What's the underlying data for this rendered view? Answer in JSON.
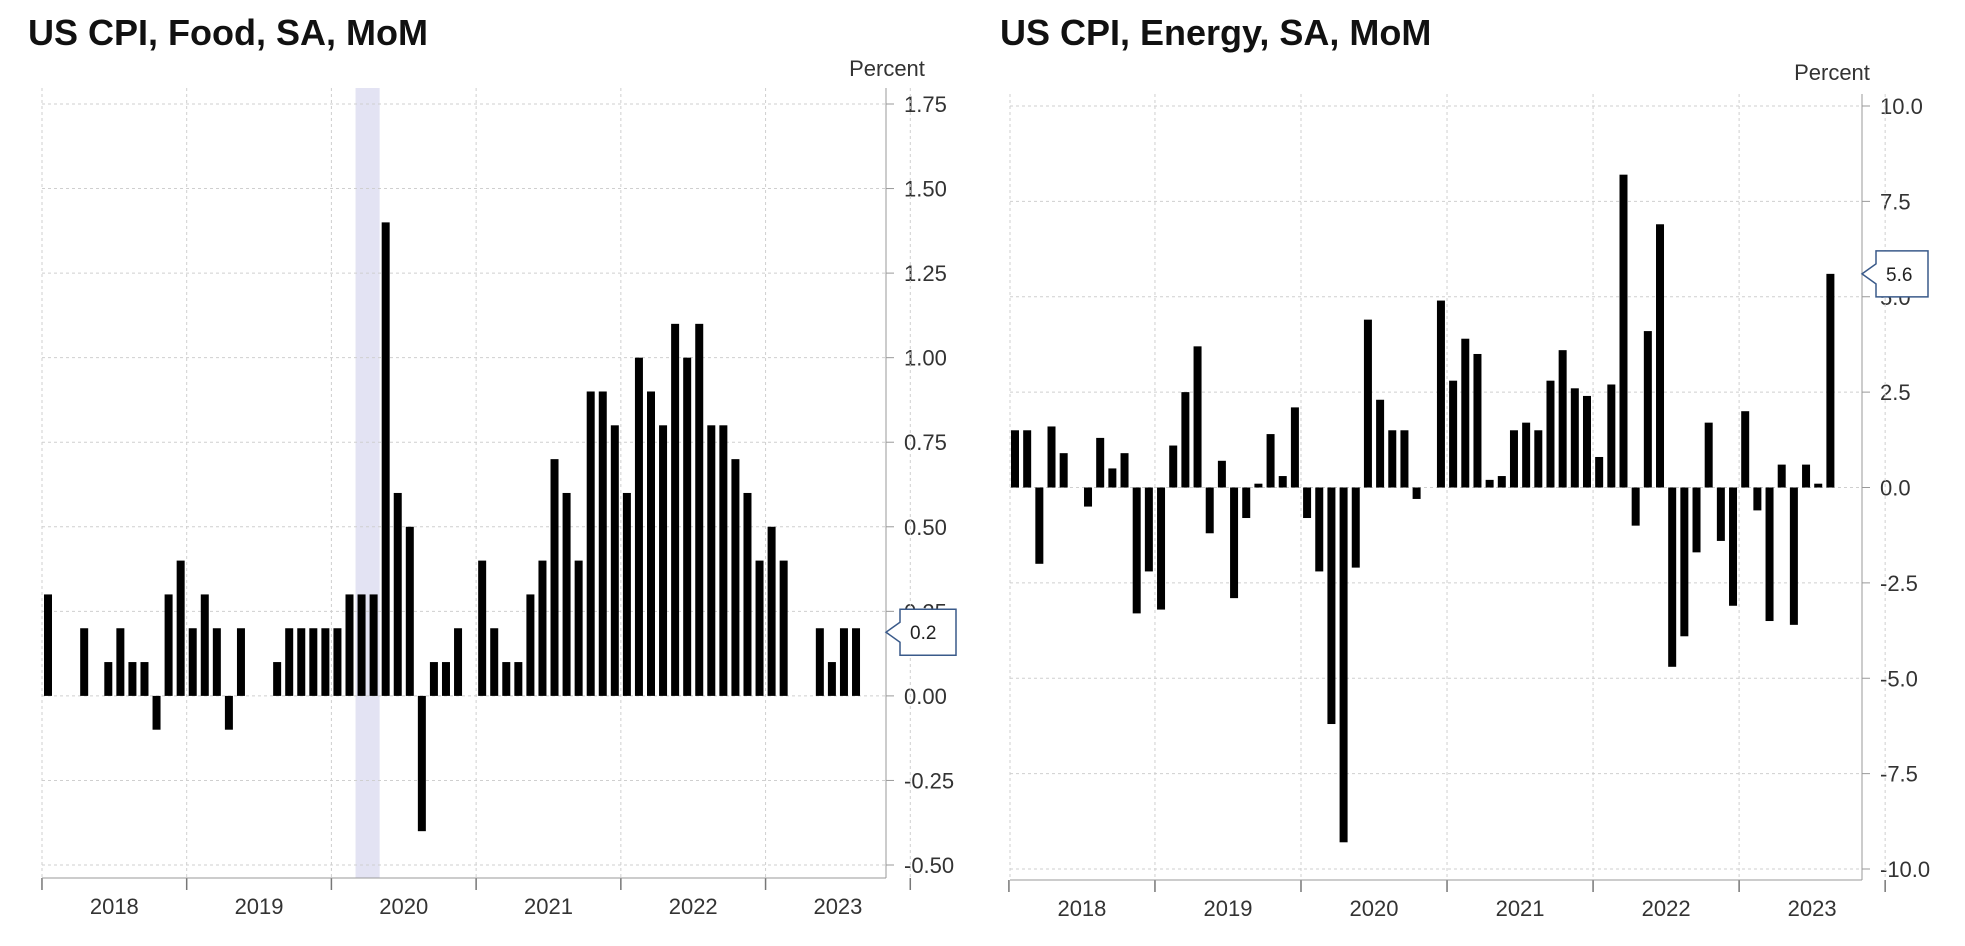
{
  "charts": {
    "food": {
      "title": "US CPI, Food, SA, MoM",
      "ylabel": "Percent",
      "last_label": "0.2"
    },
    "energy": {
      "title": "US CPI, Energy, SA, MoM",
      "ylabel": "Percent",
      "last_label": "5.6"
    }
  },
  "chart_data": [
    {
      "type": "bar",
      "title": "US CPI, Food, SA, MoM",
      "ylabel": "Percent",
      "ylim": [
        -0.5,
        1.75
      ],
      "yticks": [
        -0.5,
        -0.25,
        0.0,
        0.25,
        0.5,
        0.75,
        1.0,
        1.25,
        1.5,
        1.75
      ],
      "ytick_labels": [
        "-0.50",
        "-0.25",
        "0.00",
        "0.25",
        "0.50",
        "0.75",
        "1.00",
        "1.25",
        "1.50",
        "1.75"
      ],
      "xtick_labels": [
        "2018",
        "2019",
        "2020",
        "2021",
        "2022",
        "2023"
      ],
      "start": "2018-01",
      "grid": true,
      "recession_shading": [
        "2020-03",
        "2020-04"
      ],
      "values": [
        0.3,
        0.0,
        0.0,
        0.2,
        0.0,
        0.1,
        0.2,
        0.1,
        0.1,
        -0.1,
        0.3,
        0.4,
        0.2,
        0.3,
        0.2,
        -0.1,
        0.2,
        0.0,
        0.0,
        0.1,
        0.2,
        0.2,
        0.2,
        0.2,
        0.2,
        0.3,
        0.3,
        0.3,
        1.4,
        0.6,
        0.5,
        -0.4,
        0.1,
        0.1,
        0.2,
        0.0,
        0.4,
        0.2,
        0.1,
        0.1,
        0.3,
        0.4,
        0.7,
        0.6,
        0.4,
        0.9,
        0.9,
        0.8,
        0.6,
        1.0,
        0.9,
        0.8,
        1.1,
        1.0,
        1.1,
        0.8,
        0.8,
        0.7,
        0.6,
        0.4,
        0.5,
        0.4,
        0.0,
        0.0,
        0.2,
        0.1,
        0.2,
        0.2
      ]
    },
    {
      "type": "bar",
      "title": "US CPI, Energy, SA, MoM",
      "ylabel": "Percent",
      "ylim": [
        -10.0,
        10.0
      ],
      "yticks": [
        -10.0,
        -7.5,
        -5.0,
        -2.5,
        0.0,
        2.5,
        5.0,
        7.5,
        10.0
      ],
      "ytick_labels": [
        "-10.0",
        "-7.5",
        "-5.0",
        "-2.5",
        "0.0",
        "2.5",
        "5.0",
        "7.5",
        "10.0"
      ],
      "xtick_labels": [
        "2018",
        "2019",
        "2020",
        "2021",
        "2022",
        "2023"
      ],
      "start": "2018-01",
      "grid": true,
      "values": [
        1.5,
        1.5,
        -2.0,
        1.6,
        0.9,
        0.0,
        -0.5,
        1.3,
        0.5,
        0.9,
        -3.3,
        -2.2,
        -3.2,
        1.1,
        2.5,
        3.7,
        -1.2,
        0.7,
        -2.9,
        -0.8,
        0.1,
        1.4,
        0.3,
        2.1,
        -0.8,
        -2.2,
        -6.2,
        -9.3,
        -2.1,
        4.4,
        2.3,
        1.5,
        1.5,
        -0.3,
        0.0,
        4.9,
        2.8,
        3.9,
        3.5,
        0.2,
        0.3,
        1.5,
        1.7,
        1.5,
        2.8,
        3.6,
        2.6,
        2.4,
        0.8,
        2.7,
        8.2,
        -1.0,
        4.1,
        6.9,
        -4.7,
        -3.9,
        -1.7,
        1.7,
        -1.4,
        -3.1,
        2.0,
        -0.6,
        -3.5,
        0.6,
        -3.6,
        0.6,
        0.1,
        5.6
      ]
    }
  ]
}
